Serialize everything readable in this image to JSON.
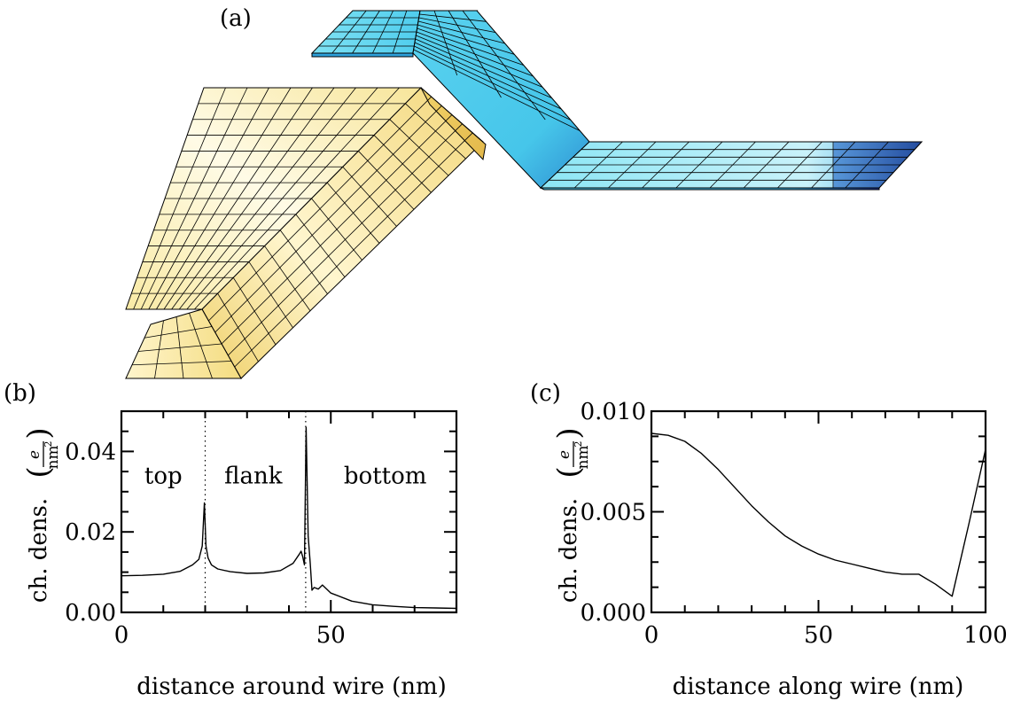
{
  "panel_labels": {
    "a": "(a)",
    "b": "(b)",
    "c": "(c)"
  },
  "colors": {
    "wire_blue_light": "#7fe3f3",
    "wire_blue_mid": "#3ac3e8",
    "wire_blue_dark": "#1b2e8a",
    "gate_yellow_light": "#fff8d6",
    "gate_yellow_mid": "#f5e08a",
    "gate_yellow_dark": "#e9c74f"
  },
  "chart_data": [
    {
      "type": "line",
      "panel": "(b)",
      "xlabel": "distance around wire (nm)",
      "ylabel_text": "ch. dens.",
      "ylabel_unit_num": "e",
      "ylabel_unit_den": "nm",
      "ylabel_unit_exp": "2",
      "xlim": [
        0,
        80
      ],
      "ylim": [
        0,
        0.05
      ],
      "xticks": [
        0,
        50
      ],
      "xtick_labels": [
        "0",
        "50"
      ],
      "yticks": [
        0,
        0.02,
        0.04
      ],
      "ytick_labels": [
        "0.00",
        "0.02",
        "0.04"
      ],
      "region_labels": [
        {
          "text": "top",
          "x": 10,
          "y": 0.034
        },
        {
          "text": "flank",
          "x": 31.5,
          "y": 0.034
        },
        {
          "text": "bottom",
          "x": 63,
          "y": 0.034
        }
      ],
      "vlines": [
        20,
        44
      ],
      "series": [
        {
          "x": [
            0,
            5,
            10,
            14,
            17,
            18.5,
            19.3,
            19.8,
            20.2,
            20.7,
            21.5,
            23,
            26,
            30,
            34,
            38,
            41,
            42.5,
            42.9,
            43.3,
            43.7,
            44.1,
            44.6,
            45.1,
            45.5,
            46,
            47,
            48,
            50,
            55,
            60,
            65,
            70,
            75,
            80
          ],
          "y": [
            0.0091,
            0.0092,
            0.0095,
            0.0102,
            0.0118,
            0.0132,
            0.0165,
            0.0272,
            0.0165,
            0.0135,
            0.0118,
            0.0108,
            0.0101,
            0.0097,
            0.0098,
            0.0104,
            0.0122,
            0.0145,
            0.0152,
            0.0138,
            0.0118,
            0.046,
            0.019,
            0.012,
            0.0055,
            0.0062,
            0.0058,
            0.0068,
            0.0048,
            0.0028,
            0.0019,
            0.0015,
            0.0012,
            0.0011,
            0.001
          ]
        }
      ]
    },
    {
      "type": "line",
      "panel": "(c)",
      "xlabel": "distance along wire (nm)",
      "ylabel_text": "ch. dens.",
      "ylabel_unit_num": "e",
      "ylabel_unit_den": "nm",
      "ylabel_unit_exp": "2",
      "xlim": [
        0,
        100
      ],
      "ylim": [
        0,
        0.01
      ],
      "xticks": [
        0,
        50,
        100
      ],
      "xtick_labels": [
        "0",
        "50",
        "100"
      ],
      "yticks": [
        0,
        0.005,
        0.01
      ],
      "ytick_labels": [
        "0.000",
        "0.005",
        "0.010"
      ],
      "series": [
        {
          "x": [
            0,
            5,
            10,
            15,
            20,
            25,
            30,
            35,
            40,
            45,
            50,
            55,
            60,
            65,
            70,
            75,
            80,
            85,
            90,
            95,
            100
          ],
          "y": [
            0.0089,
            0.0088,
            0.0085,
            0.0079,
            0.0071,
            0.0062,
            0.0053,
            0.0045,
            0.0038,
            0.0033,
            0.0029,
            0.0026,
            0.0024,
            0.0022,
            0.002,
            0.0019,
            0.0019,
            0.0014,
            0.0008,
            0.0044,
            0.0081
          ]
        }
      ]
    }
  ]
}
